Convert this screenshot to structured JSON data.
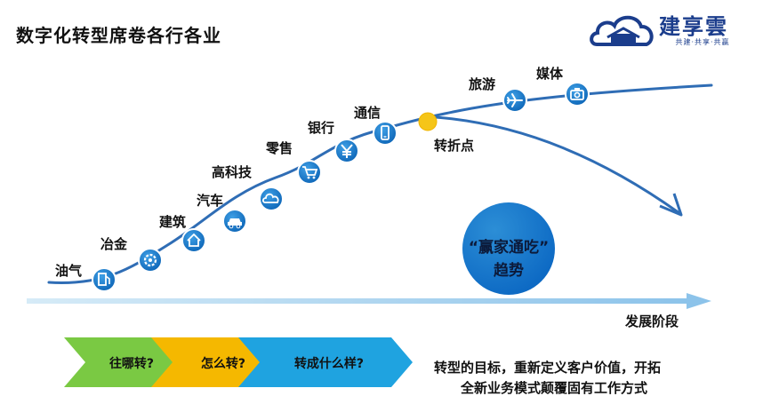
{
  "title": "数字化转型席卷各行各业",
  "logo": {
    "name": "建享雲",
    "slogan": "共建·共享·共赢"
  },
  "industries": [
    {
      "label": "油气",
      "icon": "fuel-pump-icon"
    },
    {
      "label": "冶金",
      "icon": "gear-icon"
    },
    {
      "label": "建筑",
      "icon": "house-icon"
    },
    {
      "label": "汽车",
      "icon": "car-icon"
    },
    {
      "label": "高科技",
      "icon": "cloud-icon"
    },
    {
      "label": "零售",
      "icon": "shopping-cart-icon"
    },
    {
      "label": "银行",
      "icon": "yen-icon"
    },
    {
      "label": "通信",
      "icon": "mobile-phone-icon"
    },
    {
      "label": "旅游",
      "icon": "airplane-icon"
    },
    {
      "label": "媒体",
      "icon": "camera-icon"
    }
  ],
  "turning_point": "转折点",
  "axis_label": "发展阶段",
  "trend": {
    "line1": "“赢家通吃”",
    "line2": "趋势"
  },
  "chevrons": [
    {
      "label": "往哪转?",
      "color": "#7ac943"
    },
    {
      "label": "怎么转?",
      "color": "#f5b800"
    },
    {
      "label": "转成什么样?",
      "color": "#1fa3e0"
    }
  ],
  "summary": {
    "line1": "转型的目标，重新定义客户价值，开拓",
    "line2": "全新业务模式颠覆固有工作方式"
  }
}
